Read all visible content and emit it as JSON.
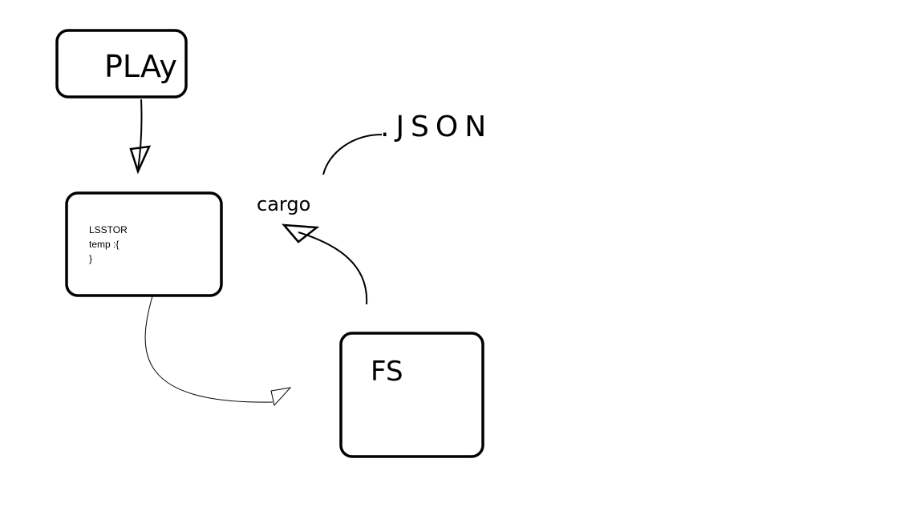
{
  "nodes": [
    {
      "label": "PLAy"
    },
    {
      "lines": [
        "LSSTOR",
        "temp :{",
        "}"
      ]
    },
    {
      "label": "FS"
    }
  ],
  "labels": [
    "cargo",
    ".JSON"
  ]
}
